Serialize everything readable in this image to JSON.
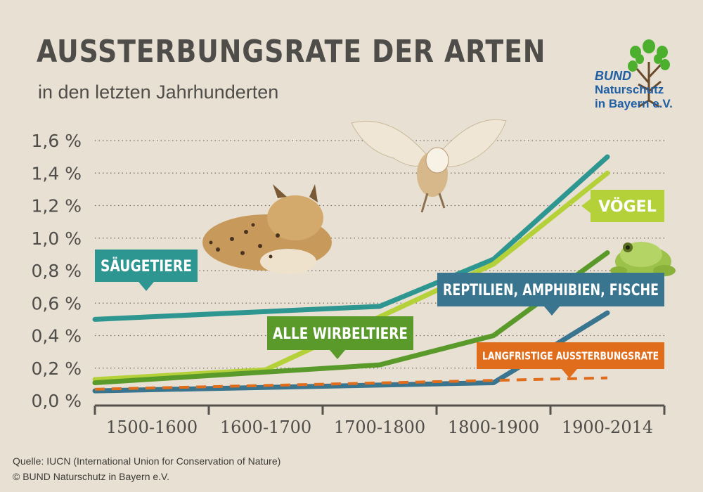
{
  "title": "AUSSTERBUNGSRATE DER ARTEN",
  "subtitle": "in den letzten Jahrhunderten",
  "logo": {
    "line1": "BUND",
    "line2": "Naturschutz",
    "line3": "in Bayern e.V."
  },
  "footer": {
    "source": "Quelle: IUCN (International Union for Conservation of Nature)",
    "copyright": "© BUND Naturschutz in Bayern e.V."
  },
  "colors": {
    "background": "#e8e0d3",
    "saeugetiere": "#2e9690",
    "voegel": "#b5d13a",
    "wirbeltiere": "#5a9a2a",
    "reptilien": "#3a7590",
    "langfristig": "#e06d1c",
    "axis": "#55524c"
  },
  "chart_data": {
    "type": "line",
    "title": "AUSSTERBUNGSRATE DER ARTEN",
    "subtitle": "in den letzten Jahrhunderten",
    "categories": [
      "1500-1600",
      "1600-1700",
      "1700-1800",
      "1800-1900",
      "1900-2014"
    ],
    "yticks": [
      "0,0 %",
      "0,2 %",
      "0,4 %",
      "0,6 %",
      "0,8 %",
      "1,0 %",
      "1,2 %",
      "1,4 %",
      "1,6 %"
    ],
    "ylim": [
      0,
      1.6
    ],
    "grid": true,
    "series": [
      {
        "name": "SÄUGETIERE",
        "color_key": "saeugetiere",
        "dashed": false,
        "points": [
          [
            0,
            0.5
          ],
          [
            2.5,
            0.58
          ],
          [
            3.5,
            0.87
          ],
          [
            4.5,
            1.5
          ]
        ]
      },
      {
        "name": "VÖGEL",
        "color_key": "voegel",
        "dashed": false,
        "points": [
          [
            0,
            0.13
          ],
          [
            1.5,
            0.19
          ],
          [
            3.5,
            0.84
          ],
          [
            4.5,
            1.4
          ]
        ]
      },
      {
        "name": "ALLE WIRBELTIERE",
        "color_key": "wirbeltiere",
        "dashed": false,
        "points": [
          [
            0,
            0.11
          ],
          [
            2.5,
            0.22
          ],
          [
            3.5,
            0.4
          ],
          [
            4.5,
            0.91
          ]
        ]
      },
      {
        "name": "REPTILIEN, AMPHIBIEN, FISCHE",
        "color_key": "reptilien",
        "dashed": false,
        "points": [
          [
            0,
            0.06
          ],
          [
            3.5,
            0.11
          ],
          [
            4.5,
            0.54
          ]
        ]
      },
      {
        "name": "LANGFRISTIGE AUSSTERBUNGSRATE",
        "color_key": "langfristig",
        "dashed": true,
        "points": [
          [
            0,
            0.07
          ],
          [
            4.5,
            0.14
          ]
        ]
      }
    ]
  }
}
